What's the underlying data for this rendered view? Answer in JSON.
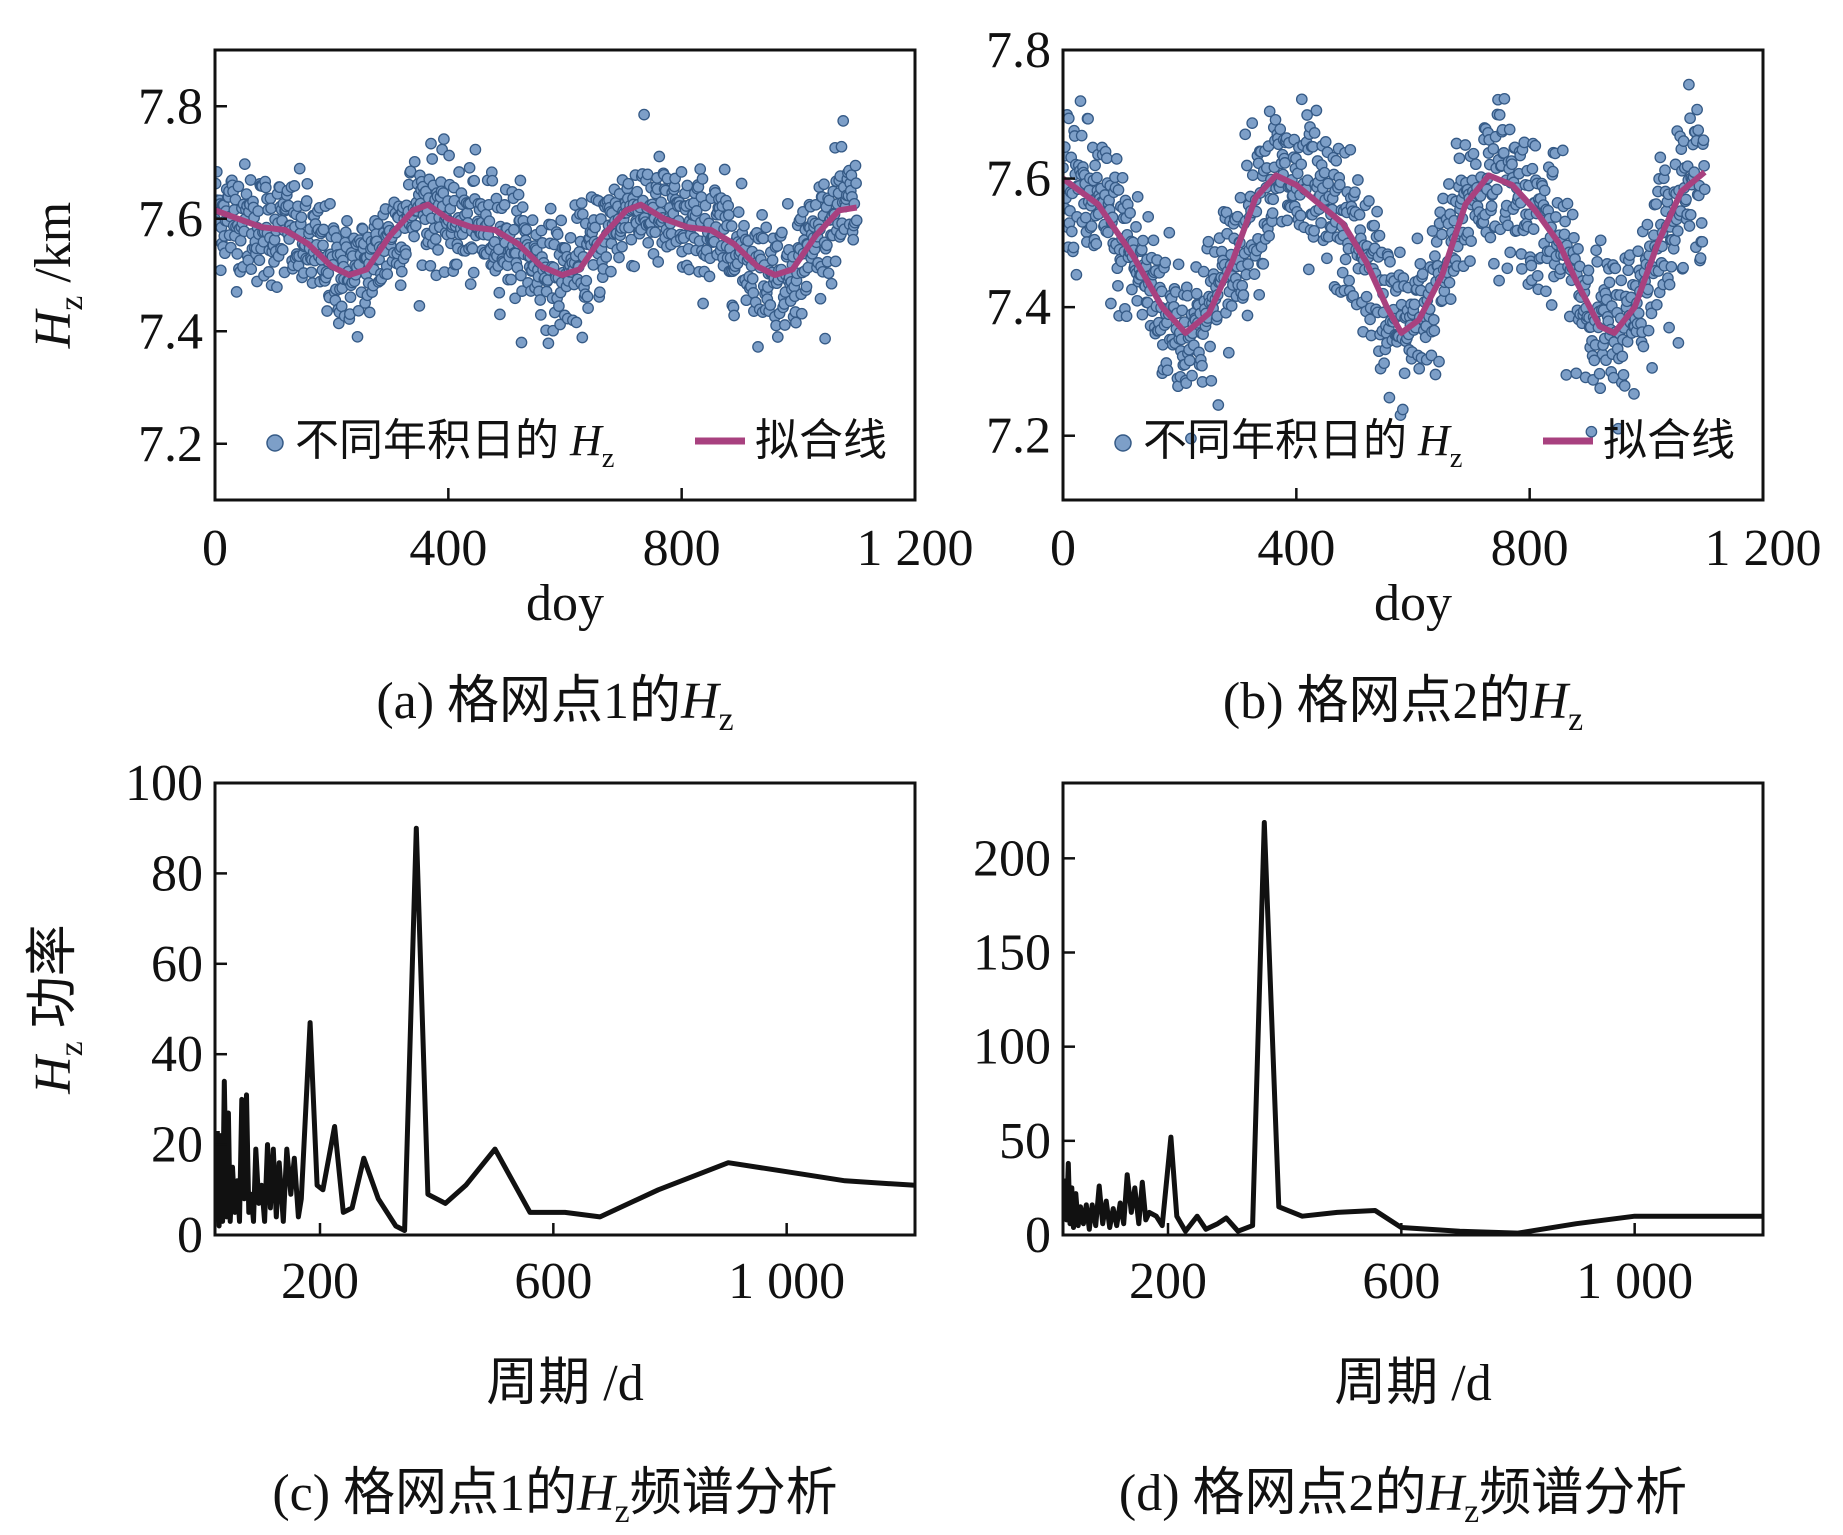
{
  "colors": {
    "scatter_fill": "#7d9fc8",
    "scatter_stroke": "#355a86",
    "fit_line": "#a8417f",
    "spectrum_line": "#111111"
  },
  "chart_data": [
    {
      "id": "a",
      "type": "scatter",
      "xlabel": "doy",
      "ylabel": "H",
      "ylabel_sub": "z",
      "ylabel_unit": " /km",
      "xlim": [
        0,
        1200
      ],
      "ylim": [
        7.1,
        7.9
      ],
      "xticks": [
        0,
        400,
        800,
        1200
      ],
      "xtick_labels": [
        "0",
        "400",
        "800",
        "1 200"
      ],
      "yticks": [
        7.2,
        7.4,
        7.6,
        7.8
      ],
      "ytick_labels": [
        "7.2",
        "7.4",
        "7.6",
        "7.8"
      ],
      "caption_prefix": "(a) 格网点1的",
      "caption_var": "H",
      "caption_sub": "z",
      "caption_suffix": "",
      "legend": {
        "scatter_label": "不同年积日的 ",
        "scatter_var": "H",
        "scatter_sub": "z",
        "line_label": "拟合线",
        "position": "bottom"
      },
      "scatter": {
        "x_range": [
          0,
          1100
        ],
        "count": 1100,
        "spread": 0.05,
        "fit": {
          "mean": 7.565,
          "amp1": 0.045,
          "amp2": 0.035,
          "period": 365
        }
      },
      "fit_points": [
        [
          0,
          7.615
        ],
        [
          40,
          7.6
        ],
        [
          80,
          7.585
        ],
        [
          120,
          7.58
        ],
        [
          160,
          7.555
        ],
        [
          200,
          7.515
        ],
        [
          230,
          7.5
        ],
        [
          260,
          7.51
        ],
        [
          300,
          7.57
        ],
        [
          340,
          7.615
        ],
        [
          365,
          7.625
        ],
        [
          400,
          7.6
        ],
        [
          440,
          7.585
        ],
        [
          480,
          7.58
        ],
        [
          520,
          7.555
        ],
        [
          560,
          7.515
        ],
        [
          595,
          7.5
        ],
        [
          625,
          7.51
        ],
        [
          665,
          7.57
        ],
        [
          705,
          7.615
        ],
        [
          730,
          7.625
        ],
        [
          770,
          7.6
        ],
        [
          810,
          7.585
        ],
        [
          850,
          7.58
        ],
        [
          890,
          7.555
        ],
        [
          930,
          7.515
        ],
        [
          960,
          7.5
        ],
        [
          990,
          7.51
        ],
        [
          1030,
          7.57
        ],
        [
          1070,
          7.615
        ],
        [
          1100,
          7.62
        ]
      ]
    },
    {
      "id": "b",
      "type": "scatter",
      "xlabel": "doy",
      "xlim": [
        0,
        1200
      ],
      "ylim": [
        7.1,
        7.8
      ],
      "xticks": [
        0,
        400,
        800,
        1200
      ],
      "xtick_labels": [
        "0",
        "400",
        "800",
        "1 200"
      ],
      "yticks": [
        7.2,
        7.4,
        7.6,
        7.8
      ],
      "ytick_labels": [
        "7.2",
        "7.4",
        "7.6",
        "7.8"
      ],
      "caption_prefix": "(b) 格网点2的",
      "caption_var": "H",
      "caption_sub": "z",
      "caption_suffix": "",
      "legend": {
        "scatter_label": "不同年积日的 ",
        "scatter_var": "H",
        "scatter_sub": "z",
        "line_label": "拟合线",
        "position": "bottom"
      },
      "scatter": {
        "x_range": [
          0,
          1100
        ],
        "count": 1100,
        "spread": 0.06
      },
      "fit_points": [
        [
          0,
          7.6
        ],
        [
          60,
          7.56
        ],
        [
          120,
          7.48
        ],
        [
          170,
          7.4
        ],
        [
          210,
          7.36
        ],
        [
          250,
          7.39
        ],
        [
          290,
          7.47
        ],
        [
          330,
          7.57
        ],
        [
          365,
          7.605
        ],
        [
          400,
          7.59
        ],
        [
          440,
          7.56
        ],
        [
          480,
          7.53
        ],
        [
          520,
          7.47
        ],
        [
          555,
          7.4
        ],
        [
          580,
          7.36
        ],
        [
          610,
          7.38
        ],
        [
          650,
          7.45
        ],
        [
          690,
          7.56
        ],
        [
          730,
          7.605
        ],
        [
          770,
          7.59
        ],
        [
          810,
          7.55
        ],
        [
          850,
          7.5
        ],
        [
          880,
          7.44
        ],
        [
          920,
          7.37
        ],
        [
          945,
          7.36
        ],
        [
          980,
          7.4
        ],
        [
          1020,
          7.5
        ],
        [
          1060,
          7.58
        ],
        [
          1100,
          7.61
        ]
      ]
    },
    {
      "id": "c",
      "type": "line",
      "xlabel": "周期 /d",
      "ylabel": "H",
      "ylabel_sub": "z",
      "ylabel_unit": " 功率",
      "xlim": [
        20,
        1220
      ],
      "ylim": [
        0,
        100
      ],
      "xticks": [
        200,
        600,
        1000
      ],
      "xtick_labels": [
        "200",
        "600",
        "1 000"
      ],
      "yticks": [
        0,
        20,
        40,
        60,
        80,
        100
      ],
      "ytick_labels": [
        "0",
        "20",
        "40",
        "60",
        "80",
        "100"
      ],
      "caption_prefix": "(c) 格网点1的",
      "caption_var": "H",
      "caption_sub": "z",
      "caption_suffix": "频谱分析",
      "noise_peaks": [
        [
          24,
          23
        ],
        [
          27,
          2
        ],
        [
          30,
          22
        ],
        [
          33,
          3
        ],
        [
          36,
          34
        ],
        [
          40,
          4
        ],
        [
          43,
          27
        ],
        [
          46,
          3
        ],
        [
          50,
          15
        ],
        [
          54,
          5
        ],
        [
          58,
          12
        ],
        [
          62,
          3
        ],
        [
          66,
          30
        ],
        [
          70,
          8
        ],
        [
          74,
          31
        ],
        [
          78,
          5
        ],
        [
          82,
          9
        ],
        [
          86,
          3
        ],
        [
          90,
          19
        ],
        [
          95,
          7
        ],
        [
          100,
          11
        ],
        [
          105,
          3
        ],
        [
          110,
          20
        ],
        [
          115,
          6
        ],
        [
          120,
          19
        ],
        [
          125,
          4
        ],
        [
          130,
          16
        ],
        [
          137,
          3
        ],
        [
          143,
          19
        ],
        [
          150,
          9
        ],
        [
          156,
          17
        ],
        [
          163,
          4
        ],
        [
          168,
          8
        ]
      ],
      "points": [
        [
          168,
          8
        ],
        [
          183,
          47
        ],
        [
          195,
          11
        ],
        [
          205,
          10
        ],
        [
          225,
          24
        ],
        [
          240,
          5
        ],
        [
          255,
          6
        ],
        [
          275,
          17
        ],
        [
          300,
          8
        ],
        [
          330,
          2
        ],
        [
          345,
          1
        ],
        [
          365,
          90
        ],
        [
          385,
          9
        ],
        [
          415,
          7
        ],
        [
          450,
          11
        ],
        [
          500,
          19
        ],
        [
          560,
          5
        ],
        [
          620,
          5
        ],
        [
          680,
          4
        ],
        [
          780,
          10
        ],
        [
          900,
          16
        ],
        [
          1000,
          14
        ],
        [
          1100,
          12
        ],
        [
          1220,
          11
        ]
      ]
    },
    {
      "id": "d",
      "type": "line",
      "xlabel": "周期 /d",
      "xlim": [
        20,
        1220
      ],
      "ylim": [
        0,
        240
      ],
      "xticks": [
        200,
        600,
        1000
      ],
      "xtick_labels": [
        "200",
        "600",
        "1 000"
      ],
      "yticks": [
        0,
        50,
        100,
        150,
        200
      ],
      "ytick_labels": [
        "0",
        "50",
        "100",
        "150",
        "200"
      ],
      "caption_prefix": "(d) 格网点2的",
      "caption_var": "H",
      "caption_sub": "z",
      "caption_suffix": "频谱分析",
      "noise_peaks": [
        [
          23,
          30
        ],
        [
          26,
          8
        ],
        [
          29,
          38
        ],
        [
          32,
          6
        ],
        [
          35,
          25
        ],
        [
          38,
          4
        ],
        [
          42,
          22
        ],
        [
          46,
          5
        ],
        [
          50,
          15
        ],
        [
          55,
          6
        ],
        [
          60,
          16
        ],
        [
          65,
          3
        ],
        [
          70,
          16
        ],
        [
          76,
          5
        ],
        [
          82,
          26
        ],
        [
          88,
          6
        ],
        [
          94,
          18
        ],
        [
          100,
          4
        ],
        [
          106,
          14
        ],
        [
          112,
          5
        ],
        [
          118,
          17
        ],
        [
          124,
          6
        ],
        [
          130,
          32
        ],
        [
          137,
          12
        ],
        [
          143,
          25
        ],
        [
          150,
          6
        ],
        [
          156,
          28
        ],
        [
          162,
          8
        ],
        [
          168,
          12
        ]
      ],
      "points": [
        [
          168,
          12
        ],
        [
          180,
          10
        ],
        [
          190,
          5
        ],
        [
          205,
          52
        ],
        [
          215,
          10
        ],
        [
          230,
          2
        ],
        [
          250,
          10
        ],
        [
          265,
          3
        ],
        [
          285,
          6
        ],
        [
          300,
          9
        ],
        [
          320,
          2
        ],
        [
          345,
          5
        ],
        [
          365,
          219
        ],
        [
          390,
          15
        ],
        [
          430,
          10
        ],
        [
          490,
          12
        ],
        [
          555,
          13
        ],
        [
          600,
          4
        ],
        [
          700,
          2
        ],
        [
          800,
          1
        ],
        [
          900,
          6
        ],
        [
          1000,
          10
        ],
        [
          1100,
          10
        ],
        [
          1220,
          10
        ]
      ]
    }
  ]
}
